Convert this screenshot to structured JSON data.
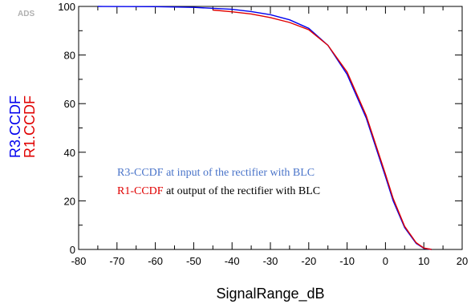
{
  "logo": "ADS",
  "chart_data": {
    "type": "line",
    "xlabel": "SignalRange_dB",
    "ylabels": [
      {
        "text": "R3.CCDF",
        "color": "#0000ee"
      },
      {
        "text": "R1.CCDF",
        "color": "#e00000"
      }
    ],
    "xlim": [
      -80,
      20
    ],
    "ylim": [
      0,
      100
    ],
    "xticks": [
      -80,
      -70,
      -60,
      -50,
      -40,
      -30,
      -20,
      -10,
      0,
      10,
      20
    ],
    "yticks": [
      0,
      20,
      40,
      60,
      80,
      100
    ],
    "grid": false,
    "series": [
      {
        "name": "R3.CCDF",
        "color": "#0000ee",
        "x": [
          -75,
          -60,
          -50,
          -40,
          -35,
          -30,
          -25,
          -20,
          -15,
          -10,
          -5,
          0,
          2,
          5,
          8,
          10,
          12
        ],
        "y": [
          100,
          99.9,
          99.6,
          98.8,
          97.9,
          96.6,
          94.5,
          91,
          84,
          72,
          54,
          30,
          20,
          9,
          2.5,
          0.5,
          0
        ]
      },
      {
        "name": "R1.CCDF",
        "color": "#e00000",
        "x": [
          -45,
          -40,
          -35,
          -30,
          -25,
          -20,
          -15,
          -10,
          -5,
          0,
          2,
          5,
          8,
          10,
          12
        ],
        "y": [
          98.5,
          97.8,
          96.9,
          95.4,
          93.4,
          90.4,
          84,
          73,
          55,
          31,
          21,
          9.5,
          2.8,
          0.6,
          0
        ]
      }
    ],
    "annotations": [
      {
        "label": "R3-CCDF",
        "text": " at input of the rectifier with BLC",
        "label_color": "#4a74c9",
        "text_color": "#4a74c9"
      },
      {
        "label": "R1-CCDF",
        "text": " at output of the rectifier with BLC",
        "label_color": "#e00000",
        "text_color": "#000000"
      }
    ]
  }
}
